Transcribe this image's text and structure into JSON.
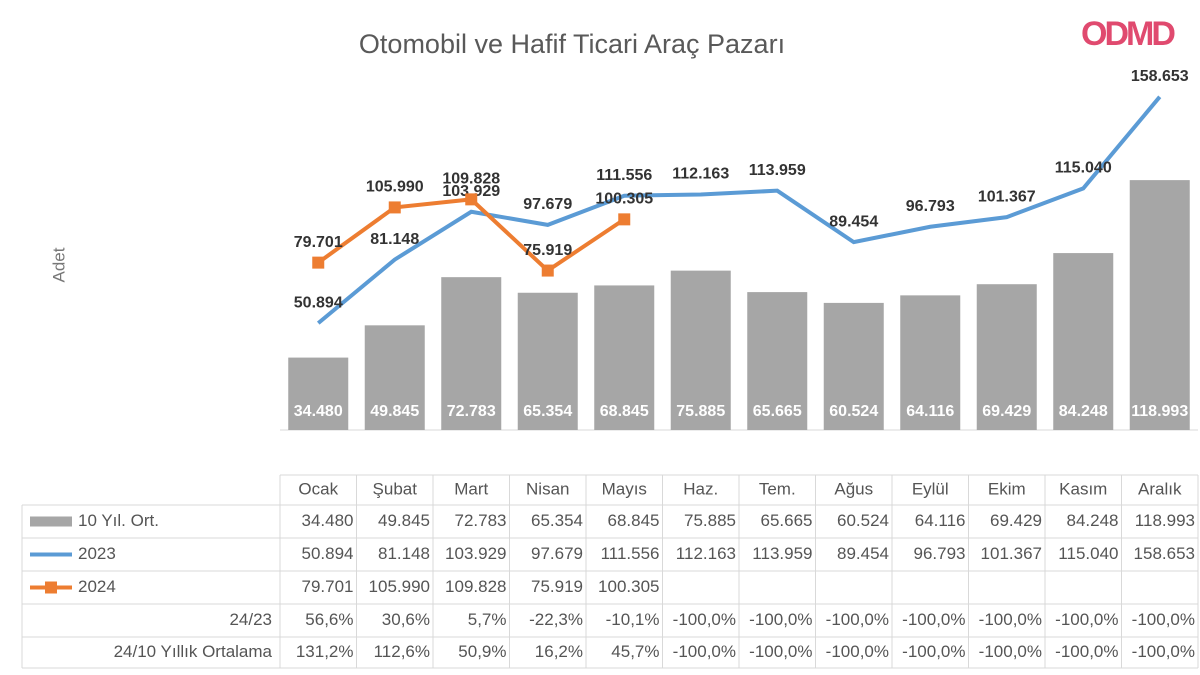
{
  "chart_data": {
    "type": "bar-line",
    "title": "Otomobil ve Hafif Ticari Araç Pazarı",
    "logo": "ODMD",
    "ylabel": "Adet",
    "categories": [
      "Ocak",
      "Şubat",
      "Mart",
      "Nisan",
      "Mayıs",
      "Haz.",
      "Tem.",
      "Ağus",
      "Eylül",
      "Ekim",
      "Kasım",
      "Aralık"
    ],
    "ylim": [
      0,
      200000
    ],
    "series": [
      {
        "name": "10 Yıl. Ort.",
        "kind": "bar",
        "color": "#a6a6a6",
        "values": [
          34480,
          49845,
          72783,
          65354,
          68845,
          75885,
          65665,
          60524,
          64116,
          69429,
          84248,
          118993
        ],
        "value_labels": [
          "34.480",
          "49.845",
          "72.783",
          "65.354",
          "68.845",
          "75.885",
          "65.665",
          "60.524",
          "64.116",
          "69.429",
          "84.248",
          "118.993"
        ]
      },
      {
        "name": "2023",
        "kind": "line",
        "color": "#5b9bd5",
        "values": [
          50894,
          81148,
          103929,
          97679,
          111556,
          112163,
          113959,
          89454,
          96793,
          101367,
          115040,
          158653
        ],
        "value_labels": [
          "50.894",
          "81.148",
          "103.929",
          "97.679",
          "111.556",
          "112.163",
          "113.959",
          "89.454",
          "96.793",
          "101.367",
          "115.040",
          "158.653"
        ]
      },
      {
        "name": "2024",
        "kind": "line",
        "marker": "square",
        "color": "#ed7d31",
        "values": [
          79701,
          105990,
          109828,
          75919,
          100305,
          null,
          null,
          null,
          null,
          null,
          null,
          null
        ],
        "value_labels": [
          "79.701",
          "105.990",
          "109.828",
          "75.919",
          "100.305",
          null,
          null,
          null,
          null,
          null,
          null,
          null
        ]
      }
    ],
    "ratio_rows": [
      {
        "name": "24/23",
        "values": [
          56.6,
          30.6,
          5.7,
          -22.3,
          -10.1,
          -100,
          -100,
          -100,
          -100,
          -100,
          -100,
          -100
        ],
        "value_labels": [
          "56,6%",
          "30,6%",
          "5,7%",
          "-22,3%",
          "-10,1%",
          "-100,0%",
          "-100,0%",
          "-100,0%",
          "-100,0%",
          "-100,0%",
          "-100,0%",
          "-100,0%"
        ]
      },
      {
        "name": "24/10 Yıllık Ortalama",
        "values": [
          131.2,
          112.6,
          50.9,
          16.2,
          45.7,
          -100,
          -100,
          -100,
          -100,
          -100,
          -100,
          -100
        ],
        "value_labels": [
          "131,2%",
          "112,6%",
          "50,9%",
          "16,2%",
          "45,7%",
          "-100,0%",
          "-100,0%",
          "-100,0%",
          "-100,0%",
          "-100,0%",
          "-100,0%",
          "-100,0%"
        ]
      }
    ]
  }
}
